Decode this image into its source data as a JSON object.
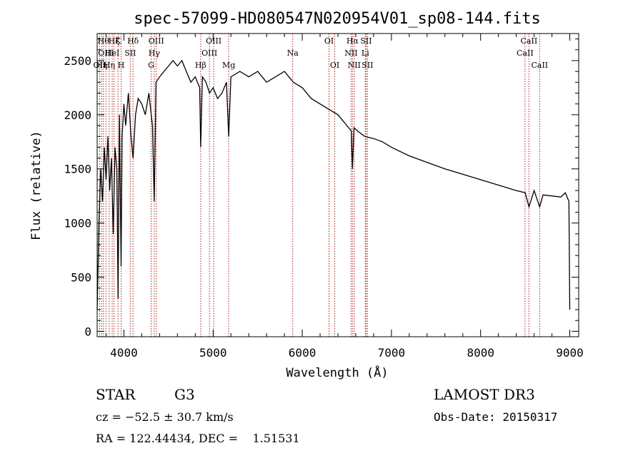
{
  "chart_data": {
    "type": "line",
    "title": "spec-57099-HD080547N020954V01_sp08-144.fits",
    "xlabel": "Wavelength (Å)",
    "ylabel": "Flux (relative)",
    "xlim": [
      3700,
      9100
    ],
    "ylim": [
      -50,
      2750
    ],
    "x_ticks": [
      4000,
      5000,
      6000,
      7000,
      8000,
      9000
    ],
    "y_ticks": [
      0,
      500,
      1000,
      1500,
      2000,
      2500
    ],
    "series": [
      {
        "name": "flux",
        "x": [
          3700,
          3720,
          3740,
          3760,
          3780,
          3800,
          3820,
          3840,
          3860,
          3880,
          3900,
          3920,
          3935,
          3950,
          3968,
          3980,
          4000,
          4020,
          4050,
          4080,
          4102,
          4130,
          4160,
          4200,
          4240,
          4280,
          4320,
          4340,
          4360,
          4400,
          4450,
          4500,
          4550,
          4600,
          4650,
          4700,
          4750,
          4800,
          4850,
          4861,
          4880,
          4920,
          4960,
          5000,
          5050,
          5100,
          5150,
          5175,
          5200,
          5300,
          5400,
          5500,
          5600,
          5700,
          5800,
          5900,
          6000,
          6100,
          6200,
          6300,
          6400,
          6500,
          6550,
          6563,
          6580,
          6620,
          6700,
          6800,
          6900,
          7000,
          7200,
          7400,
          7600,
          7800,
          8000,
          8200,
          8400,
          8500,
          8542,
          8600,
          8662,
          8700,
          8800,
          8900,
          8950,
          8990,
          9000
        ],
        "y": [
          200,
          1000,
          1500,
          1200,
          1700,
          1400,
          1800,
          1300,
          1600,
          900,
          1700,
          1500,
          300,
          2000,
          600,
          1800,
          2100,
          1900,
          2200,
          1800,
          1600,
          2000,
          2150,
          2100,
          2000,
          2200,
          1900,
          1200,
          2300,
          2350,
          2400,
          2450,
          2500,
          2450,
          2500,
          2400,
          2300,
          2350,
          2250,
          1700,
          2350,
          2300,
          2200,
          2250,
          2150,
          2200,
          2300,
          1800,
          2350,
          2400,
          2350,
          2400,
          2300,
          2350,
          2400,
          2300,
          2250,
          2150,
          2100,
          2050,
          2000,
          1900,
          1850,
          1500,
          1880,
          1850,
          1800,
          1780,
          1750,
          1700,
          1620,
          1560,
          1500,
          1450,
          1400,
          1350,
          1300,
          1280,
          1150,
          1300,
          1150,
          1260,
          1250,
          1240,
          1280,
          1200,
          200
        ]
      }
    ],
    "lines": [
      {
        "wl": 3727,
        "label": "OII",
        "row": 2
      },
      {
        "wl": 3750,
        "label": "Hη",
        "row": 2
      },
      {
        "wl": 3770,
        "label": "Hθ",
        "row": 0
      },
      {
        "wl": 3798,
        "label": "OIII",
        "row": 1
      },
      {
        "wl": 3835,
        "label": "Hη",
        "row": 2
      },
      {
        "wl": 3869,
        "label": "HeI",
        "row": 1
      },
      {
        "wl": 3889,
        "label": "Hζ",
        "row": 0
      },
      {
        "wl": 3934,
        "label": "K",
        "row": 0
      },
      {
        "wl": 3969,
        "label": "H",
        "row": 2
      },
      {
        "wl": 4071,
        "label": "SII",
        "row": 1
      },
      {
        "wl": 4102,
        "label": "Hδ",
        "row": 0
      },
      {
        "wl": 4305,
        "label": "G",
        "row": 2
      },
      {
        "wl": 4340,
        "label": "Hγ",
        "row": 1
      },
      {
        "wl": 4363,
        "label": "OIII",
        "row": 0
      },
      {
        "wl": 4861,
        "label": "Hβ",
        "row": 2
      },
      {
        "wl": 4959,
        "label": "OIII",
        "row": 1
      },
      {
        "wl": 5007,
        "label": "OIII",
        "row": 0
      },
      {
        "wl": 5175,
        "label": "Mg",
        "row": 2
      },
      {
        "wl": 5893,
        "label": "Na",
        "row": 1
      },
      {
        "wl": 6300,
        "label": "OI",
        "row": 0
      },
      {
        "wl": 6364,
        "label": "OI",
        "row": 2
      },
      {
        "wl": 6548,
        "label": "NII",
        "row": 1
      },
      {
        "wl": 6563,
        "label": "Hα",
        "row": 0
      },
      {
        "wl": 6583,
        "label": "NII",
        "row": 2
      },
      {
        "wl": 6707,
        "label": "Li",
        "row": 1
      },
      {
        "wl": 6716,
        "label": "SII",
        "row": 0
      },
      {
        "wl": 6731,
        "label": "SII",
        "row": 2
      },
      {
        "wl": 8498,
        "label": "CaII",
        "row": 1
      },
      {
        "wl": 8542,
        "label": "CaII",
        "row": 0
      },
      {
        "wl": 8662,
        "label": "CaII",
        "row": 2
      }
    ]
  },
  "info": {
    "object_class": "STAR",
    "subclass": "G3",
    "survey": "LAMOST DR3",
    "cz": "cz = −52.5 ± 30.7 km/s",
    "obs_date": "Obs-Date: 20150317",
    "coords": "RA = 122.44434, DEC =    1.51531"
  },
  "colors": {
    "line_marker": "#aa2222",
    "spectrum": "#000000",
    "axis": "#000000"
  }
}
